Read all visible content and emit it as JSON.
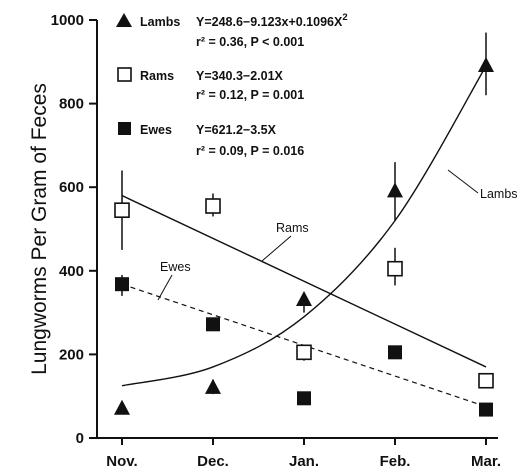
{
  "chart_data": {
    "type": "scatter",
    "categories": [
      "Nov.",
      "Dec.",
      "Jan.",
      "Feb.",
      "Mar."
    ],
    "ylabel": "Lungworms Per Gram of Feces",
    "ylim": [
      0,
      1000
    ],
    "yticks": [
      0,
      200,
      400,
      600,
      800,
      1000
    ],
    "series": [
      {
        "name": "Lambs",
        "marker": "triangle",
        "values": [
          70,
          120,
          330,
          590,
          890
        ],
        "err_low": [
          60,
          105,
          300,
          520,
          820
        ],
        "err_high": [
          85,
          140,
          340,
          660,
          970
        ],
        "equation": "Y=248.6−9.123x+0.1096X",
        "equation_sup": "2",
        "stats": "r² = 0.36,  P  <  0.001",
        "curve": [
          125,
          170,
          290,
          520,
          890
        ]
      },
      {
        "name": "Rams",
        "marker": "open-square",
        "values": [
          545,
          555,
          205,
          405,
          137
        ],
        "err_low": [
          450,
          530,
          185,
          365,
          125
        ],
        "err_high": [
          640,
          585,
          220,
          455,
          150
        ],
        "equation": "Y=340.3−2.01X",
        "stats": "r² = 0.12,  P  =  0.001",
        "line": [
          580,
          170
        ]
      },
      {
        "name": "Ewes",
        "marker": "filled-square",
        "values": [
          368,
          272,
          95,
          205,
          68
        ],
        "err_low": [
          340,
          262,
          88,
          198,
          62
        ],
        "err_high": [
          390,
          280,
          102,
          212,
          75
        ],
        "equation": "Y=621.2−3.5X",
        "stats": "r² = 0.09,  P  =  0.016",
        "line": [
          368,
          75
        ]
      }
    ],
    "annotations": [
      {
        "text": "Rams",
        "series": "Rams"
      },
      {
        "text": "Ewes",
        "series": "Ewes"
      },
      {
        "text": "Lambs",
        "series": "Lambs"
      }
    ]
  }
}
